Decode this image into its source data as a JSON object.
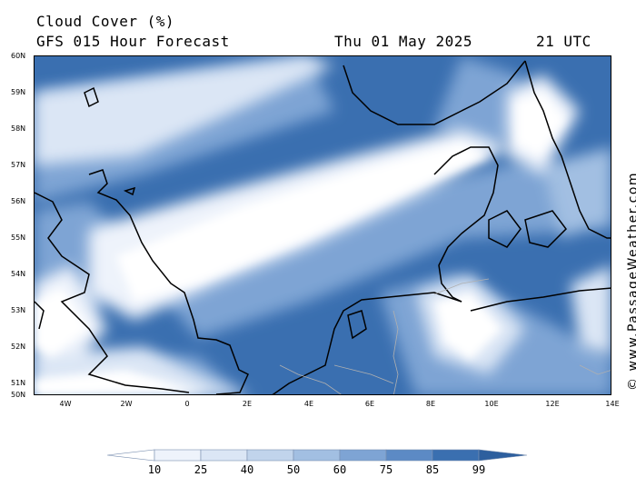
{
  "header": {
    "title": "Cloud Cover (%)",
    "subtitle": "GFS 015 Hour Forecast",
    "date": "Thu 01 May 2025",
    "time": "21 UTC"
  },
  "axes": {
    "lat_labels": [
      "60N",
      "59N",
      "58N",
      "57N",
      "56N",
      "55N",
      "54N",
      "53N",
      "52N",
      "51N",
      "50N"
    ],
    "lon_labels": [
      "4W",
      "2W",
      "0",
      "2E",
      "4E",
      "6E",
      "8E",
      "10E",
      "12E",
      "14E"
    ]
  },
  "copyright": "© www.PassageWeather.com",
  "legend": {
    "labels": [
      "10",
      "25",
      "40",
      "50",
      "60",
      "75",
      "85",
      "99"
    ],
    "colors": [
      "#ffffff",
      "#eef3fb",
      "#dbe6f5",
      "#c1d4ec",
      "#a2bfe2",
      "#7ea4d4",
      "#5c8ac5",
      "#3a6fb0",
      "#2d5f9e"
    ]
  },
  "map": {
    "land_outline_color": "#000000",
    "border_color": "#b0b0b0"
  }
}
